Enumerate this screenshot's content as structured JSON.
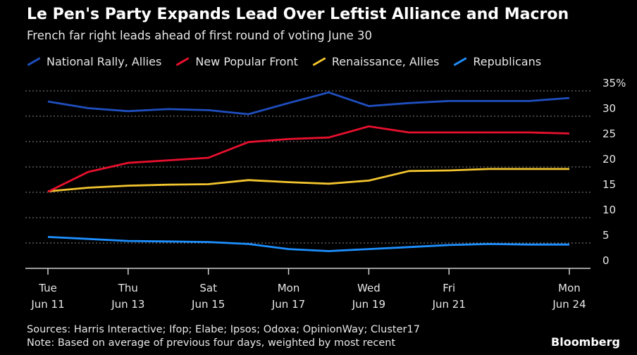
{
  "title": "Le Pen's Party Expands Lead Over Leftist Alliance and Macron",
  "subtitle": "French far right leads ahead of first round of voting June 30",
  "legend": [
    {
      "name": "National Rally, Allies",
      "color": "#1f4fbf"
    },
    {
      "name": "New Popular Front",
      "color": "#e8102e"
    },
    {
      "name": "Renaissance, Allies",
      "color": "#f2c42e"
    },
    {
      "name": "Republicans",
      "color": "#1e90ff"
    }
  ],
  "source": "Sources: Harris Interactive; Ifop; Elabe; Ipsos; Odoxa; OpinionWay; Cluster17",
  "note": "Note: Based on average of previous four days, weighted by most recent",
  "brand": "Bloomberg",
  "chart_data": {
    "type": "line",
    "x": [
      "2024-06-11",
      "2024-06-12",
      "2024-06-13",
      "2024-06-14",
      "2024-06-15",
      "2024-06-16",
      "2024-06-17",
      "2024-06-18",
      "2024-06-19",
      "2024-06-20",
      "2024-06-21",
      "2024-06-22",
      "2024-06-23",
      "2024-06-24"
    ],
    "x_ticks": [
      {
        "x": "2024-06-11",
        "line1": "Tue",
        "line2": "Jun 11"
      },
      {
        "x": "2024-06-13",
        "line1": "Thu",
        "line2": "Jun 13"
      },
      {
        "x": "2024-06-15",
        "line1": "Sat",
        "line2": "Jun 15"
      },
      {
        "x": "2024-06-17",
        "line1": "Mon",
        "line2": "Jun 17"
      },
      {
        "x": "2024-06-19",
        "line1": "Wed",
        "line2": "Jun 19"
      },
      {
        "x": "2024-06-21",
        "line1": "Fri",
        "line2": "Jun 21"
      },
      {
        "x": "2024-06-24",
        "line1": "Mon",
        "line2": "Jun 24"
      }
    ],
    "y_ticks": [
      "0",
      "5",
      "10",
      "15",
      "20",
      "25",
      "30",
      "35%"
    ],
    "ylim": [
      0,
      35
    ],
    "grid": true,
    "series": [
      {
        "name": "National Rally, Allies",
        "color": "#1f4fbf",
        "values": [
          32.9,
          31.6,
          31.0,
          31.4,
          31.2,
          30.4,
          32.6,
          34.7,
          32.0,
          32.6,
          33.0,
          33.0,
          33.0,
          33.6
        ]
      },
      {
        "name": "New Popular Front",
        "color": "#e8102e",
        "values": [
          15.1,
          19.0,
          20.8,
          21.3,
          21.8,
          24.9,
          25.5,
          25.8,
          28.0,
          26.8,
          26.8,
          26.8,
          26.8,
          26.6
        ]
      },
      {
        "name": "Renaissance, Allies",
        "color": "#f2c42e",
        "values": [
          15.2,
          15.9,
          16.3,
          16.5,
          16.6,
          17.4,
          17.0,
          16.7,
          17.3,
          19.2,
          19.3,
          19.6,
          19.6,
          19.6
        ]
      },
      {
        "name": "Republicans",
        "color": "#1e90ff",
        "values": [
          6.2,
          5.8,
          5.4,
          5.3,
          5.2,
          4.8,
          3.8,
          3.4,
          3.8,
          4.2,
          4.6,
          4.8,
          4.7,
          4.7
        ]
      }
    ]
  }
}
